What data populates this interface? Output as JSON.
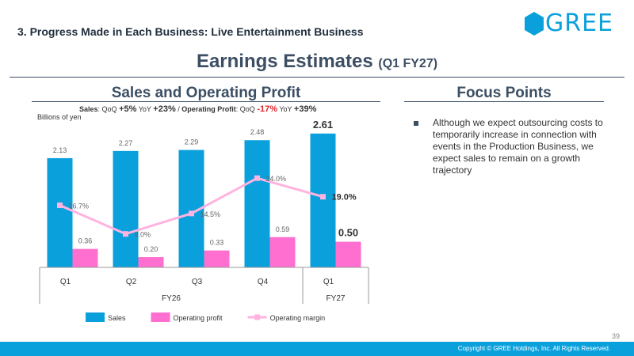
{
  "header": {
    "section_title": "3. Progress Made in Each Business: Live Entertainment Business",
    "headline": "Earnings Estimates",
    "headline_sub": "(Q1 FY27)",
    "logo_text": "GREE",
    "brand_color": "#0aa0dc"
  },
  "left_panel": {
    "title": "Sales and Operating Profit",
    "growth": {
      "sales_label": "Sales",
      "qoq_label": "QoQ",
      "yoy_label": "YoY",
      "op_label": "Operating Profit",
      "sales_qoq": "+5%",
      "sales_yoy": "+23%",
      "op_qoq": "-17%",
      "op_yoy": "+39%"
    },
    "unit": "Billions of yen"
  },
  "right_panel": {
    "title": "Focus Points",
    "items": [
      "Although we expect outsourcing costs to temporarily increase in connection with events in the Production Business, we expect sales to remain on a growth trajectory"
    ]
  },
  "chart_data": {
    "type": "bar",
    "categories": [
      "Q1",
      "Q2",
      "Q3",
      "Q4",
      "Q1"
    ],
    "groups": [
      {
        "label": "FY26",
        "span": 4
      },
      {
        "label": "FY27",
        "span": 1
      }
    ],
    "series": [
      {
        "name": "Sales",
        "type": "bar",
        "color": "#0aa0dc",
        "values": [
          2.13,
          2.27,
          2.29,
          2.48,
          2.61
        ],
        "labels": [
          "2.13",
          "2.27",
          "2.29",
          "2.48",
          "2.61"
        ]
      },
      {
        "name": "Operating profit",
        "type": "bar",
        "color": "#ff6fcf",
        "values": [
          0.36,
          0.2,
          0.33,
          0.59,
          0.5
        ],
        "labels": [
          "0.36",
          "0.20",
          "0.33",
          "0.59",
          "0.50"
        ]
      },
      {
        "name": "Operating margin",
        "type": "line",
        "color": "#ffb3e0",
        "unit": "%",
        "values": [
          16.7,
          9.0,
          14.5,
          24.0,
          19.0
        ],
        "labels": [
          "16.7%",
          "9.0%",
          "14.5%",
          "24.0%",
          "19.0%"
        ]
      }
    ],
    "highlight_index": 4,
    "ylim": [
      0,
      2.9
    ],
    "margin_ylim": [
      0,
      40
    ],
    "legend": "bottom",
    "grid": false
  },
  "footer": {
    "page_number": "39",
    "copyright": "Copyright © GREE Holdings, Inc. All Rights Reserved."
  }
}
